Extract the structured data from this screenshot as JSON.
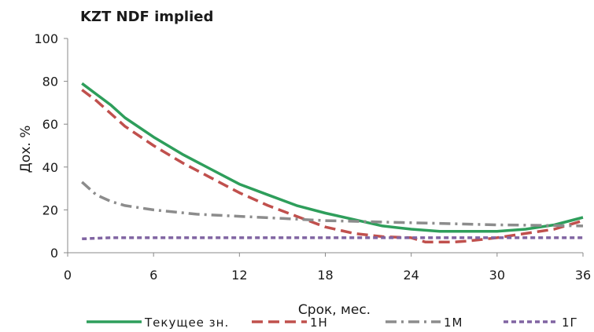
{
  "chart_data": {
    "type": "line",
    "title": "KZT NDF implied",
    "xlabel": "Срок, мес.",
    "ylabel": "Дох. %",
    "xlim": [
      0,
      36
    ],
    "ylim": [
      0,
      100
    ],
    "xticks": [
      0,
      6,
      12,
      18,
      24,
      30,
      36
    ],
    "yticks": [
      0,
      20,
      40,
      60,
      80,
      100
    ],
    "grid": false,
    "legend_position": "bottom",
    "series": [
      {
        "name": "Текущее зн.",
        "color": "#2e9e5b",
        "style": "solid",
        "x": [
          1,
          2,
          3,
          4,
          6,
          8,
          10,
          12,
          14,
          16,
          18,
          20,
          22,
          24,
          26,
          28,
          30,
          32,
          34,
          36
        ],
        "y": [
          79,
          74,
          69,
          63,
          54,
          46,
          39,
          32,
          27,
          22,
          18.5,
          15.5,
          12.5,
          11,
          10,
          10,
          10,
          11,
          13,
          16.5
        ]
      },
      {
        "name": "1Н",
        "color": "#c0504d",
        "style": "dash",
        "x": [
          1,
          2,
          3,
          4,
          6,
          8,
          10,
          12,
          14,
          16,
          18,
          20,
          22,
          24,
          25,
          27,
          28,
          30,
          32,
          34,
          36
        ],
        "y": [
          76,
          71,
          65,
          59,
          50,
          42,
          35,
          28,
          22,
          17,
          12,
          9,
          7.5,
          7,
          5,
          5,
          5.5,
          7,
          9,
          11,
          15
        ]
      },
      {
        "name": "1М",
        "color": "#8c8c8c",
        "style": "dashdot",
        "x": [
          1,
          2,
          3,
          4,
          6,
          9,
          12,
          15,
          18,
          21,
          24,
          27,
          30,
          33,
          36
        ],
        "y": [
          33,
          27,
          24,
          22,
          20,
          18,
          17,
          16,
          15,
          14.5,
          14,
          13.5,
          13,
          12.8,
          12.5
        ]
      },
      {
        "name": "1Г",
        "color": "#8064a2",
        "style": "dot",
        "x": [
          1,
          3,
          6,
          12,
          18,
          24,
          30,
          36
        ],
        "y": [
          6.5,
          7,
          7,
          7,
          7,
          7,
          7,
          7
        ]
      }
    ]
  }
}
